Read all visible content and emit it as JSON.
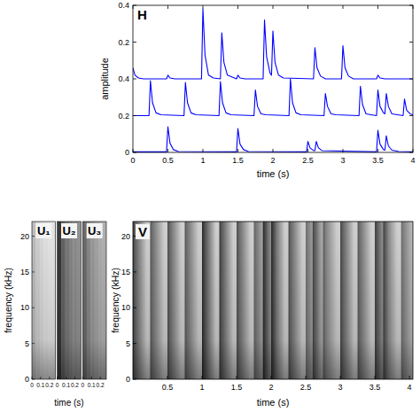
{
  "chart_data": [
    {
      "type": "line",
      "title": "H",
      "x_label": "time (s)",
      "y_label": "amplitude",
      "xlim": [
        0,
        4
      ],
      "xticks": [
        0,
        0.5,
        1,
        1.5,
        2,
        2.5,
        3,
        3.5,
        4
      ],
      "ylim": [
        0,
        0.8
      ],
      "yticks": [
        0,
        0.2,
        0.4,
        {
          "value": 0.6,
          "label": "0.2"
        },
        {
          "value": 0.8,
          "label": "0.4"
        }
      ],
      "series": [
        {
          "color": "#0000ff",
          "x": [
            0,
            0.03,
            0.08,
            0.15,
            0.48,
            0.5,
            0.53,
            0.6,
            0.98,
            1.0,
            1.03,
            1.08,
            1.15,
            1.25,
            1.27,
            1.3,
            1.35,
            1.45,
            1.48,
            1.5,
            1.53,
            1.6,
            1.86,
            1.88,
            1.91,
            1.96,
            1.98,
            2.0,
            2.03,
            2.08,
            2.15,
            2.58,
            2.6,
            2.63,
            2.68,
            2.75,
            2.98,
            3.0,
            3.03,
            3.08,
            3.15,
            3.48,
            3.5,
            3.53,
            3.6,
            4
          ],
          "values": [
            0.46,
            0.42,
            0.405,
            0.4,
            0.4,
            0.42,
            0.405,
            0.4,
            0.4,
            0.78,
            0.53,
            0.42,
            0.405,
            0.4,
            0.65,
            0.49,
            0.42,
            0.405,
            0.4,
            0.42,
            0.405,
            0.4,
            0.4,
            0.72,
            0.52,
            0.43,
            0.42,
            0.66,
            0.49,
            0.42,
            0.405,
            0.4,
            0.57,
            0.46,
            0.415,
            0.4,
            0.4,
            0.58,
            0.46,
            0.415,
            0.4,
            0.4,
            0.42,
            0.405,
            0.4,
            0.4
          ]
        },
        {
          "color": "#0000ff",
          "x": [
            0,
            0.23,
            0.25,
            0.28,
            0.33,
            0.4,
            0.73,
            0.75,
            0.78,
            0.83,
            0.9,
            1.23,
            1.25,
            1.28,
            1.33,
            1.4,
            1.73,
            1.75,
            1.78,
            1.83,
            1.9,
            2.23,
            2.25,
            2.28,
            2.33,
            2.4,
            2.73,
            2.75,
            2.78,
            2.83,
            2.9,
            3.23,
            3.25,
            3.28,
            3.33,
            3.4,
            3.48,
            3.5,
            3.53,
            3.58,
            3.6,
            3.62,
            3.65,
            3.7,
            3.86,
            3.88,
            3.91,
            3.96,
            4
          ],
          "values": [
            0.2,
            0.2,
            0.39,
            0.27,
            0.215,
            0.205,
            0.2,
            0.38,
            0.27,
            0.215,
            0.205,
            0.2,
            0.385,
            0.27,
            0.215,
            0.205,
            0.2,
            0.34,
            0.25,
            0.21,
            0.205,
            0.2,
            0.4,
            0.27,
            0.215,
            0.205,
            0.2,
            0.32,
            0.25,
            0.21,
            0.205,
            0.2,
            0.36,
            0.26,
            0.21,
            0.205,
            0.2,
            0.34,
            0.25,
            0.215,
            0.21,
            0.32,
            0.25,
            0.21,
            0.2,
            0.29,
            0.23,
            0.21,
            0.205
          ]
        },
        {
          "color": "#0000ff",
          "x": [
            0,
            0.48,
            0.5,
            0.53,
            0.58,
            0.65,
            1.48,
            1.5,
            1.53,
            1.58,
            1.65,
            2.48,
            2.5,
            2.53,
            2.58,
            2.6,
            2.62,
            2.65,
            2.7,
            3.48,
            3.5,
            3.53,
            3.58,
            3.6,
            3.62,
            3.65,
            3.7,
            3.8,
            4
          ],
          "values": [
            0.003,
            0.003,
            0.14,
            0.05,
            0.015,
            0.005,
            0.003,
            0.13,
            0.045,
            0.015,
            0.005,
            0.003,
            0.06,
            0.025,
            0.01,
            0.01,
            0.06,
            0.025,
            0.01,
            0.003,
            0.12,
            0.045,
            0.015,
            0.012,
            0.09,
            0.035,
            0.012,
            0.005,
            0.003
          ]
        }
      ]
    },
    {
      "type": "spectrogram",
      "x_label": "time (s)",
      "y_label": "frequency (kHz)",
      "xlim": [
        0,
        0.27
      ],
      "xticks": [
        0,
        0.1,
        0.2
      ],
      "ylim": [
        0,
        22.05
      ],
      "yticks": [
        0,
        5,
        10,
        15,
        20
      ],
      "bins": [
        0,
        0.045,
        0.09,
        0.135,
        0.18,
        0.225,
        0.27
      ],
      "series": [
        {
          "name": "U₁",
          "values": [
            0.3,
            0.22,
            0.17,
            0.14,
            0.12,
            0.12
          ]
        },
        {
          "name": "U₂",
          "values": [
            0.92,
            0.72,
            0.62,
            0.56,
            0.52,
            0.5
          ]
        },
        {
          "name": "U₃",
          "values": [
            0.68,
            0.55,
            0.47,
            0.42,
            0.38,
            0.36
          ]
        }
      ]
    },
    {
      "type": "spectrogram",
      "title": "V",
      "x_label": "time (s)",
      "y_label": "frequency (kHz)",
      "xlim": [
        0,
        4.05
      ],
      "xticks": [
        0.5,
        1,
        1.5,
        2,
        2.5,
        3,
        3.5,
        4
      ],
      "ylim": [
        0,
        22.05
      ],
      "yticks": [
        0,
        5,
        10,
        15,
        20
      ],
      "onsets": [
        0,
        0.25,
        0.5,
        0.75,
        1.0,
        1.25,
        1.5,
        1.75,
        1.88,
        2.0,
        2.25,
        2.5,
        2.6,
        2.75,
        3.0,
        3.25,
        3.5,
        3.62,
        3.88
      ],
      "levels": [
        0.7,
        0.6,
        0.65,
        0.6,
        0.85,
        0.75,
        0.65,
        0.55,
        0.8,
        0.75,
        0.65,
        0.5,
        0.6,
        0.5,
        0.7,
        0.6,
        0.75,
        0.6,
        0.5
      ]
    }
  ]
}
